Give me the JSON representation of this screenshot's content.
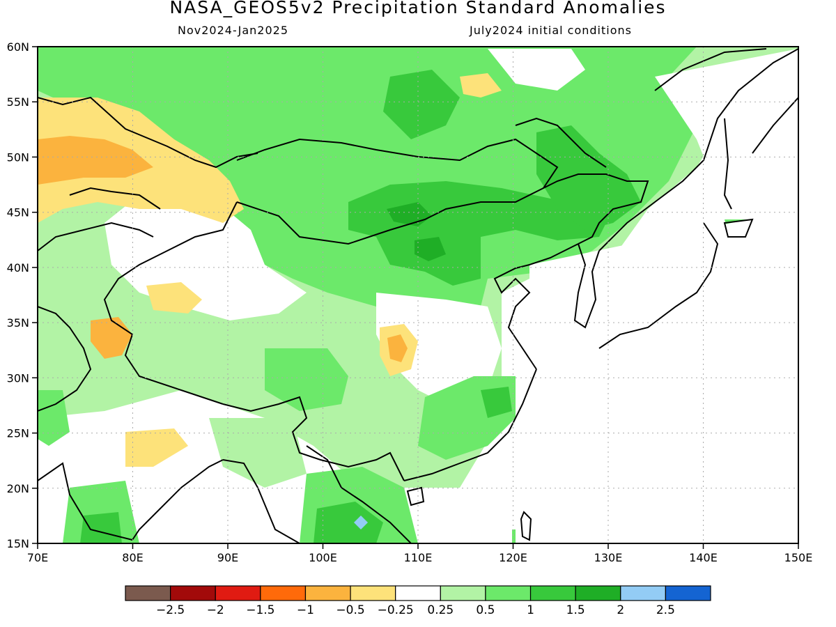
{
  "title": "NASA_GEOS5v2 Precipitation Standard Anomalies",
  "period": "Nov2024-Jan2025",
  "initial_conditions": "July2024 initial conditions",
  "map": {
    "lon_range": [
      70,
      150
    ],
    "lat_range": [
      15,
      60
    ],
    "lon_ticks": [
      "70E",
      "80E",
      "90E",
      "100E",
      "110E",
      "120E",
      "130E",
      "140E",
      "150E"
    ],
    "lat_ticks": [
      "15N",
      "20N",
      "25N",
      "30N",
      "35N",
      "40N",
      "45N",
      "50N",
      "55N",
      "60N"
    ]
  },
  "colorbar": {
    "colors": [
      "#7b5a4e",
      "#a20a0a",
      "#e01b12",
      "#ff6a0a",
      "#fbb33e",
      "#fde27a",
      "#ffffff",
      "#b2f3a5",
      "#6ce96a",
      "#38c93c",
      "#1fae26",
      "#93ccf5",
      "#1464d2"
    ],
    "labels": [
      "-2.5",
      "-2",
      "-1.5",
      "-1",
      "-0.5",
      "-0.25",
      "0.25",
      "0.5",
      "1",
      "1.5",
      "2",
      "2.5"
    ]
  },
  "legend_colors": {
    "dry_light": "#fde27a",
    "dry_mid": "#fbb33e",
    "wet_light": "#b2f3a5",
    "wet_mid": "#6ce96a",
    "wet_strong": "#38c93c",
    "wet_very": "#1fae26",
    "wet_blue": "#93ccf5"
  }
}
